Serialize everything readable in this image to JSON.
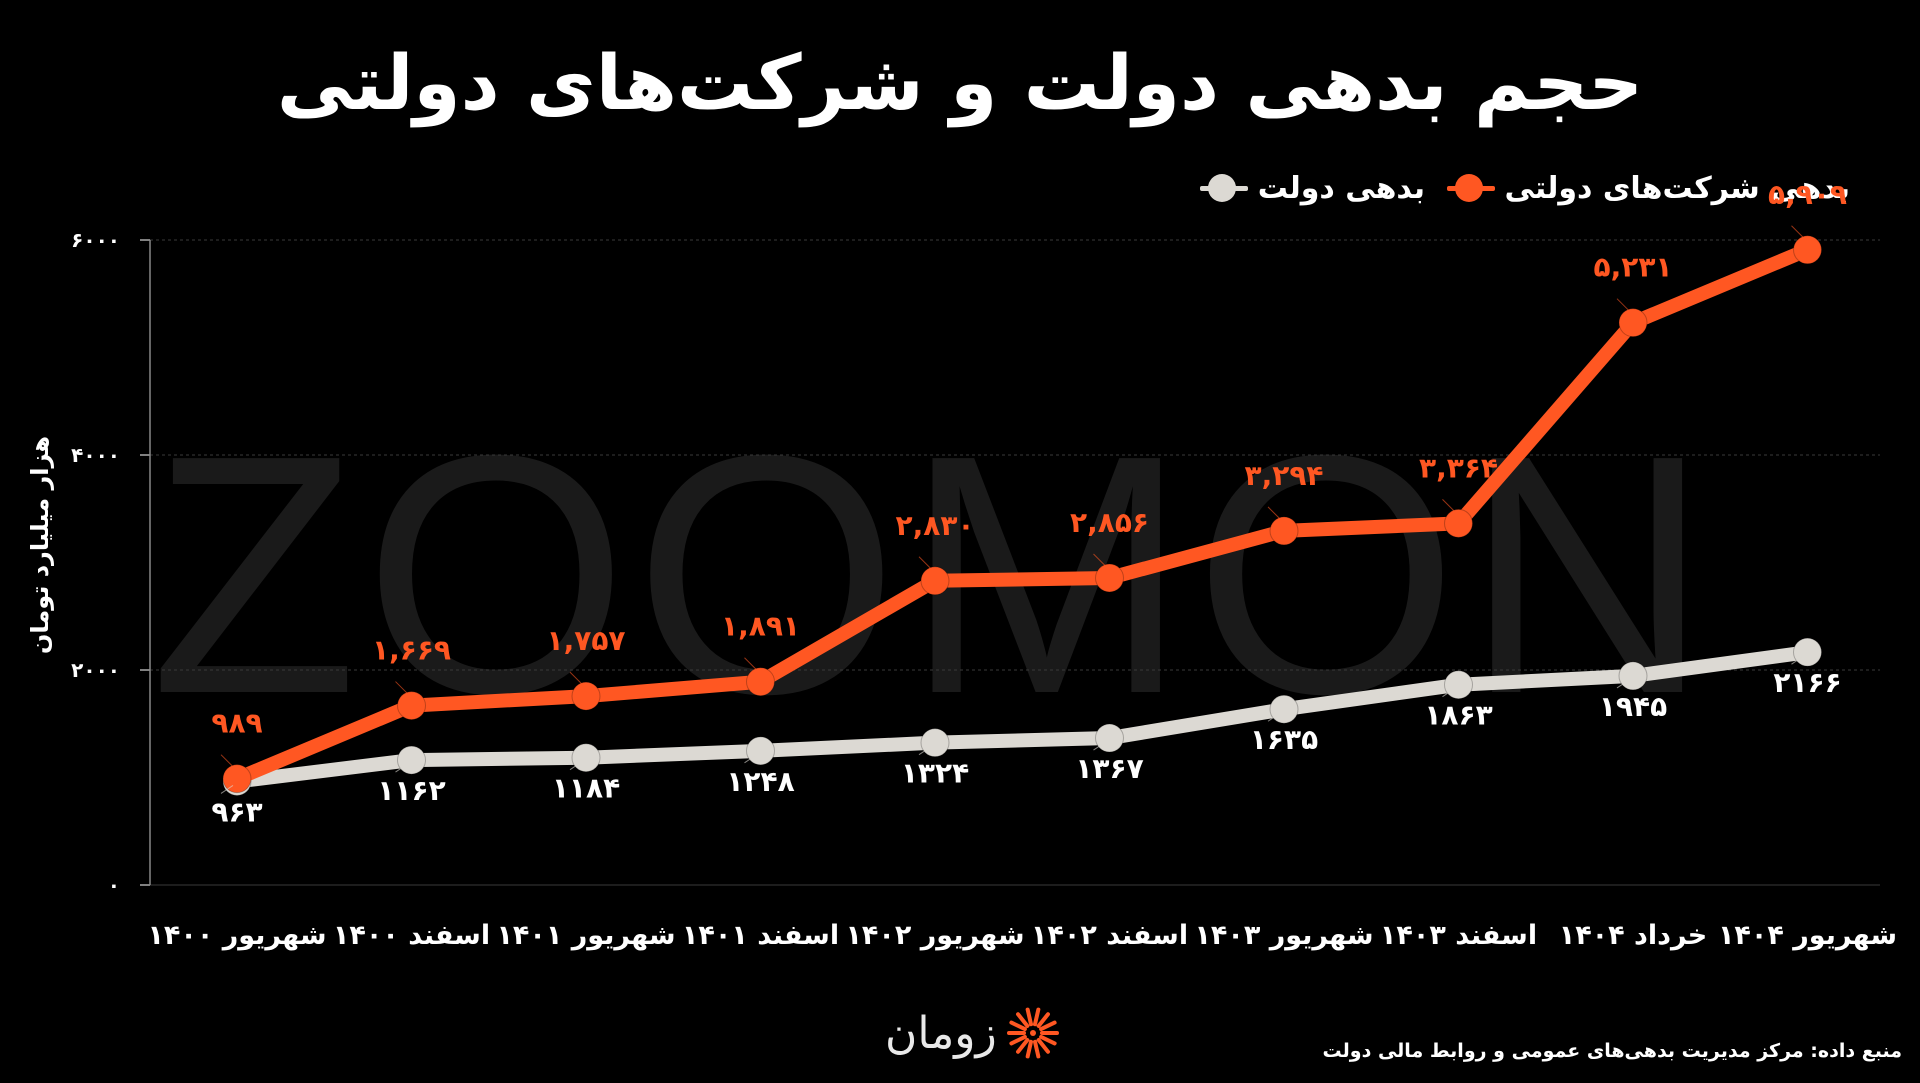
{
  "title": "حجم بدهی دولت و شرکت‌های دولتی",
  "watermark": "ZOOMON",
  "legend": {
    "state_companies": "بدهی شرکت‌های دولتی",
    "government": "بدهی دولت"
  },
  "source": "منبع داده: مرکز مدیریت بدهی‌های عمومی و روابط مالی دولت",
  "brand": {
    "name": "زومان",
    "icon": "sunburst-logo-icon"
  },
  "colors": {
    "orange": "#ff5722",
    "gray": "#dcd9d3",
    "grid": "#3a3a3a",
    "background": "#000000"
  },
  "chart_data": {
    "type": "line",
    "ylabel": "هزار میلیارد تومان",
    "ylim": [
      0,
      6000
    ],
    "yticks": [
      0,
      2000,
      4000,
      6000
    ],
    "ytick_labels": [
      "۰",
      "۲۰۰۰",
      "۴۰۰۰",
      "۶۰۰۰"
    ],
    "grid": true,
    "legend_position": "top-right",
    "categories": [
      "شهریور ۱۴۰۰",
      "اسفند ۱۴۰۰",
      "شهریور ۱۴۰۱",
      "اسفند ۱۴۰۱",
      "شهریور ۱۴۰۲",
      "اسفند ۱۴۰۲",
      "شهریور ۱۴۰۳",
      "اسفند ۱۴۰۳",
      "خرداد ۱۴۰۴",
      "شهریور ۱۴۰۴"
    ],
    "series": [
      {
        "name": "بدهی شرکت‌های دولتی",
        "color": "#ff5722",
        "values": [
          989,
          1669,
          1757,
          1891,
          2830,
          2856,
          3294,
          3364,
          5231,
          5909
        ],
        "labels": [
          "۹۸۹",
          "۱,۶۶۹",
          "۱,۷۵۷",
          "۱,۸۹۱",
          "۲,۸۳۰",
          "۲,۸۵۶",
          "۳,۲۹۴",
          "۳,۳۶۴",
          "۵,۲۳۱",
          "۵,۹۰۹"
        ]
      },
      {
        "name": "بدهی دولت",
        "color": "#dcd9d3",
        "values": [
          963,
          1162,
          1184,
          1248,
          1324,
          1367,
          1635,
          1863,
          1945,
          2166
        ],
        "labels": [
          "۹۶۳",
          "۱۱۶۲",
          "۱۱۸۴",
          "۱۲۴۸",
          "۱۳۲۴",
          "۱۳۶۷",
          "۱۶۳۵",
          "۱۸۶۳",
          "۱۹۴۵",
          "۲۱۶۶"
        ]
      }
    ]
  }
}
